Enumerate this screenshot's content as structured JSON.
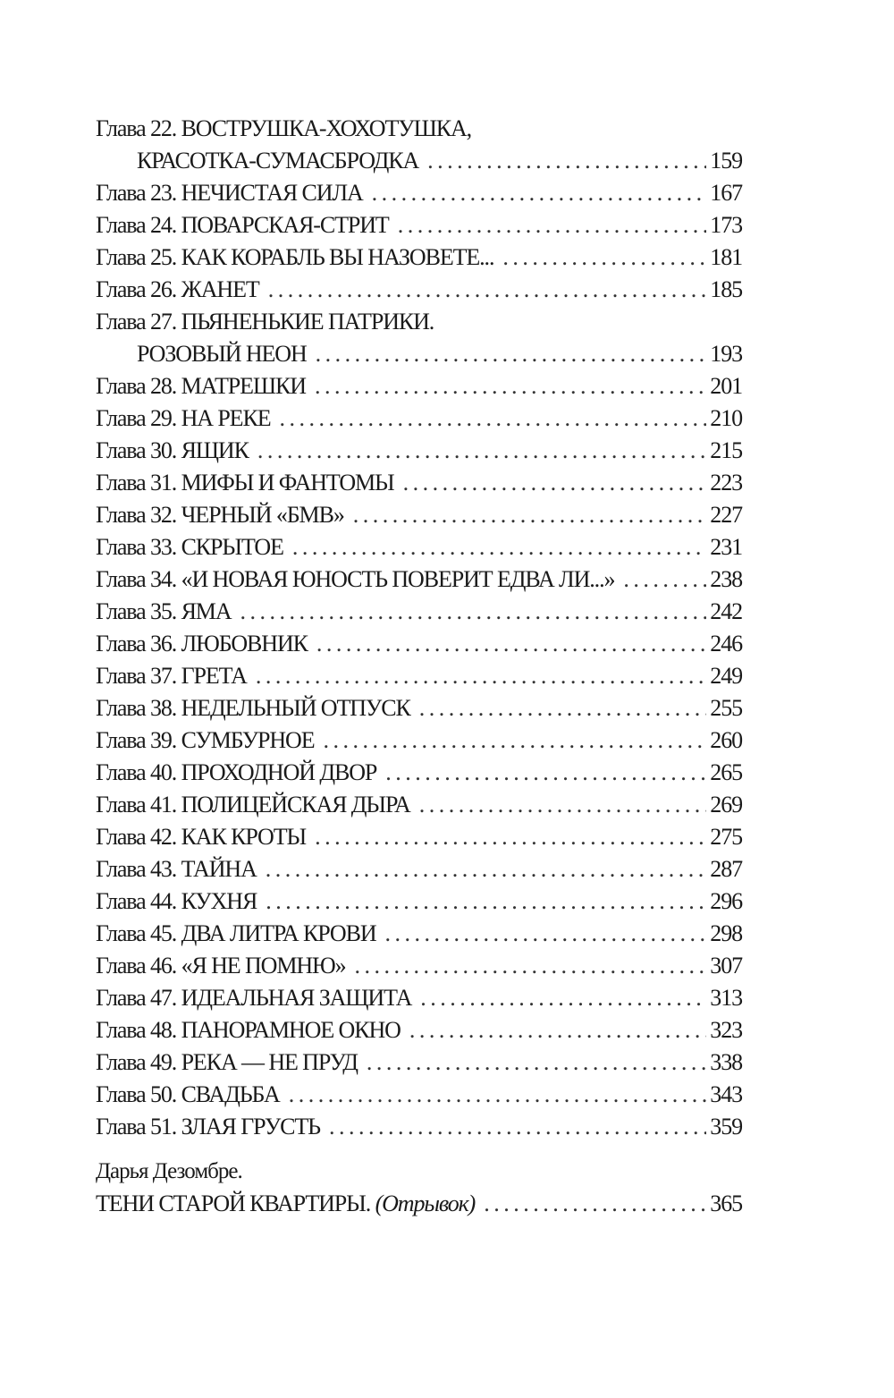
{
  "toc": [
    {
      "title": "Глава 22. ВОСТРУШКА-ХОХОТУШКА,",
      "page": ""
    },
    {
      "title": "КРАСОТКА-СУМАСБРОДКА",
      "page": "159",
      "indent": true
    },
    {
      "title": "Глава 23. НЕЧИСТАЯ СИЛА",
      "page": "167"
    },
    {
      "title": "Глава 24. ПОВАРСКАЯ-СТРИТ",
      "page": "173"
    },
    {
      "title": "Глава 25. КАК КОРАБЛЬ ВЫ НАЗОВЕТЕ...",
      "page": "181"
    },
    {
      "title": "Глава 26. ЖАНЕТ",
      "page": "185"
    },
    {
      "title": "Глава 27. ПЬЯНЕНЬКИЕ ПАТРИКИ.",
      "page": ""
    },
    {
      "title": "РОЗОВЫЙ НЕОН",
      "page": "193",
      "indent": true
    },
    {
      "title": "Глава 28. МАТРЕШКИ",
      "page": "201"
    },
    {
      "title": "Глава 29. НА РЕКЕ",
      "page": "210"
    },
    {
      "title": "Глава 30. ЯЩИК",
      "page": "215"
    },
    {
      "title": "Глава 31. МИФЫ И ФАНТОМЫ",
      "page": "223"
    },
    {
      "title": "Глава 32. ЧЕРНЫЙ «БМВ»",
      "page": "227"
    },
    {
      "title": "Глава 33. СКРЫТОЕ",
      "page": "231"
    },
    {
      "title": "Глава 34. «И НОВАЯ ЮНОСТЬ ПОВЕРИТ ЕДВА ЛИ...»",
      "page": "238"
    },
    {
      "title": "Глава 35. ЯМА",
      "page": "242"
    },
    {
      "title": "Глава 36. ЛЮБОВНИК",
      "page": "246"
    },
    {
      "title": "Глава 37. ГРЕТА",
      "page": "249"
    },
    {
      "title": "Глава 38. НЕДЕЛЬНЫЙ ОТПУСК",
      "page": "255"
    },
    {
      "title": "Глава 39. СУМБУРНОЕ",
      "page": "260"
    },
    {
      "title": "Глава 40. ПРОХОДНОЙ ДВОР",
      "page": "265"
    },
    {
      "title": "Глава 41. ПОЛИЦЕЙСКАЯ ДЫРА",
      "page": "269"
    },
    {
      "title": "Глава 42. КАК КРОТЫ",
      "page": "275"
    },
    {
      "title": "Глава 43. ТАЙНА",
      "page": "287"
    },
    {
      "title": "Глава 44. КУХНЯ",
      "page": "296"
    },
    {
      "title": "Глава 45. ДВА ЛИТРА КРОВИ",
      "page": "298"
    },
    {
      "title": "Глава 46. «Я НЕ ПОМНЮ»",
      "page": "307"
    },
    {
      "title": "Глава 47. ИДЕАЛЬНАЯ ЗАЩИТА",
      "page": "313"
    },
    {
      "title": "Глава 48. ПАНОРАМНОЕ ОКНО",
      "page": "323"
    },
    {
      "title": "Глава 49. РЕКА — НЕ ПРУД",
      "page": "338"
    },
    {
      "title": "Глава 50. СВАДЬБА",
      "page": "343"
    },
    {
      "title": "Глава 51. ЗЛАЯ ГРУСТЬ",
      "page": "359"
    }
  ],
  "appendix": {
    "author": "Дарья Дезомбре.",
    "title": "ТЕНИ СТАРОЙ КВАРТИРЫ.",
    "note": "(Отрывок)",
    "page": "365"
  }
}
